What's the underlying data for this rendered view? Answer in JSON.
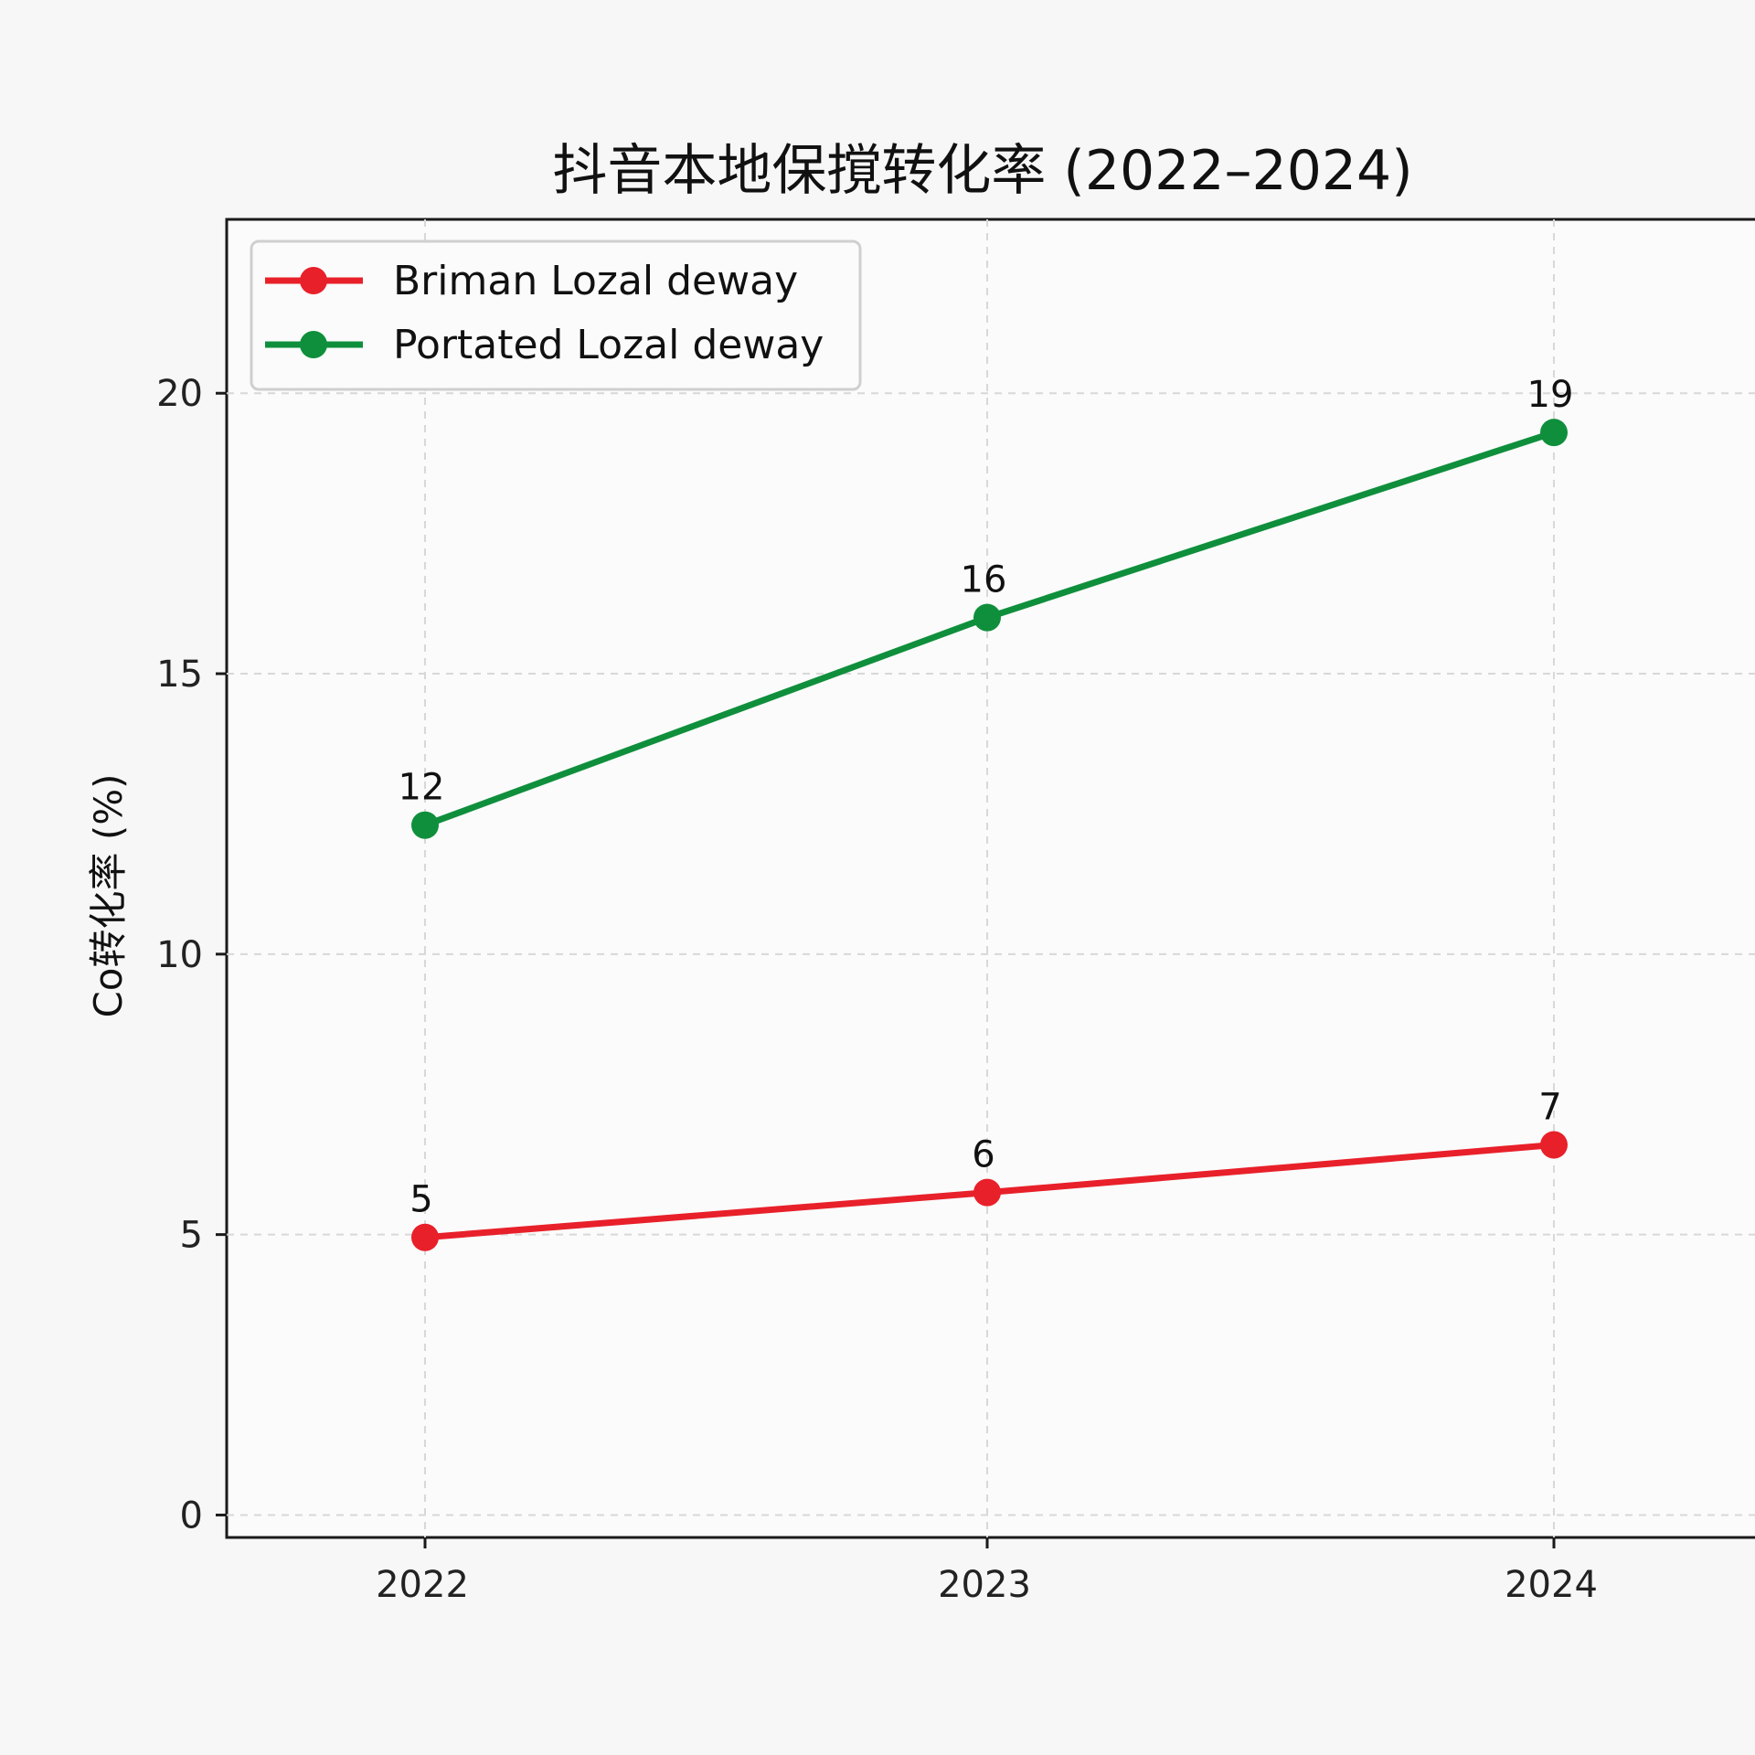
{
  "chart_data": {
    "type": "line",
    "title": "抖音本地保撹转化率 (2022–2024)",
    "xlabel": "",
    "ylabel": "Co转化率 (%)",
    "categories": [
      "2022",
      "2023",
      "2024"
    ],
    "ylim": [
      -0.4,
      23.1
    ],
    "yticks": [
      0,
      5,
      10,
      15,
      20
    ],
    "grid": true,
    "legend_position": "top-left",
    "series": [
      {
        "name": "Briman Lozal deway",
        "color": "#e8202a",
        "values": [
          4.95,
          5.75,
          6.6
        ],
        "labels": [
          "5",
          "6",
          "7"
        ]
      },
      {
        "name": "Portated Lozal deway",
        "color": "#0f8f3c",
        "values": [
          12.3,
          16,
          19.3
        ],
        "labels": [
          "12",
          "16",
          "19"
        ]
      }
    ]
  }
}
